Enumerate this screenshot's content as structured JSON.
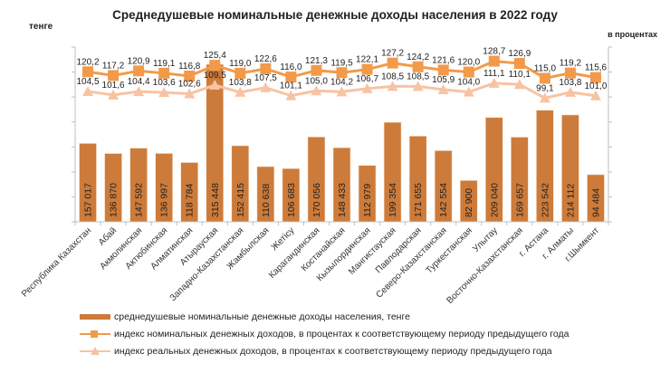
{
  "chart_data": {
    "type": "bar",
    "title": "Среднедушевые номинальные денежные доходы населения в 2022 году",
    "ylabel_left": "тенге",
    "ylabel_right": "в процентах",
    "xlabel": "",
    "ylim_left": [
      0,
      350000
    ],
    "ylim_right": [
      0,
      140
    ],
    "left_tick_step": 50000,
    "right_tick_step": 20,
    "tick_labels_visible": false,
    "grid": false,
    "legend_position": "bottom",
    "categories": [
      "Республика Казахстан",
      "Абай",
      "Акмолинская",
      "Актюбинская",
      "Алматинская",
      "Атырауская",
      "Западно-Казахстанская",
      "Жамбылская",
      "Жетісу",
      "Карагандинская",
      "Костанайская",
      "Кызылординская",
      "Мангистауская",
      "Павлодарская",
      "Северо-Казахстанская",
      "Туркестанская",
      "Улытау",
      "Восточно-Казахстанская",
      "г. Астана",
      "г. Алматы",
      "г.Шымкент"
    ],
    "series": [
      {
        "name": "среднедушевые номинальные денежные доходы населения, тенге",
        "type": "bar",
        "axis": "left",
        "color": "#CD7B3A",
        "values": [
          157017,
          136870,
          147592,
          136997,
          118784,
          315448,
          152415,
          110638,
          106683,
          170056,
          148433,
          112979,
          199354,
          171655,
          142554,
          82900,
          209040,
          169657,
          223542,
          214112,
          94484
        ],
        "labels": [
          "157 017",
          "136 870",
          "147 592",
          "136 997",
          "118 784",
          "315 448",
          "152 415",
          "110 638",
          "106 683",
          "170 056",
          "148 433",
          "112 979",
          "199 354",
          "171 655",
          "142 554",
          "82 900",
          "209 040",
          "169 657",
          "223 542",
          "214 112",
          "94 484"
        ]
      },
      {
        "name": "индекс номинальных денежных доходов, в процентах к соответствующему периоду предыдущего года",
        "type": "line",
        "marker": "square",
        "axis": "right",
        "color": "#F39A4A",
        "values": [
          120.2,
          117.2,
          120.9,
          119.1,
          116.8,
          125.4,
          119.0,
          122.6,
          116.0,
          121.3,
          119.5,
          122.1,
          127.2,
          124.2,
          121.6,
          120.0,
          128.7,
          126.9,
          115.0,
          119.2,
          115.6
        ],
        "labels": [
          "120,2",
          "117,2",
          "120,9",
          "119,1",
          "116,8",
          "125,4",
          "119,0",
          "122,6",
          "116,0",
          "121,3",
          "119,5",
          "122,1",
          "127,2",
          "124,2",
          "121,6",
          "120,0",
          "128,7",
          "126,9",
          "115,0",
          "119,2",
          "115,6"
        ]
      },
      {
        "name": "индекс реальных денежных доходов, в процентах к соответствующему периоду предыдущего года",
        "type": "line",
        "marker": "triangle",
        "axis": "right",
        "color": "#F8C3A3",
        "values": [
          104.5,
          101.6,
          104.4,
          103.6,
          102.6,
          109.5,
          103.8,
          107.5,
          101.1,
          105.0,
          104.2,
          106.7,
          108.5,
          108.5,
          105.9,
          104.0,
          111.1,
          110.1,
          99.1,
          103.8,
          101.0
        ],
        "labels": [
          "104,5",
          "101,6",
          "104,4",
          "103,6",
          "102,6",
          "109,5",
          "103,8",
          "107,5",
          "101,1",
          "105,0",
          "104,2",
          "106,7",
          "108,5",
          "108,5",
          "105,9",
          "104,0",
          "111,1",
          "110,1",
          "99,1",
          "103,8",
          "101,0"
        ]
      }
    ]
  }
}
